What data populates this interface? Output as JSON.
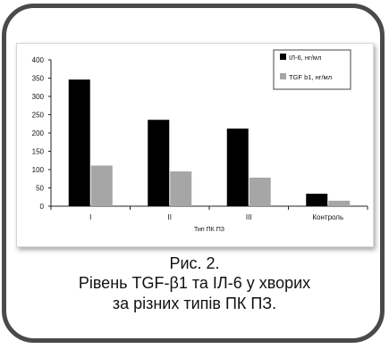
{
  "chart_data": {
    "type": "bar",
    "categories": [
      "I",
      "II",
      "III",
      "Контроль"
    ],
    "series": [
      {
        "name": "ІЛ-6, нг/мл",
        "values": [
          346,
          236,
          212,
          34
        ],
        "color": "#000000"
      },
      {
        "name": "TGF  b1, нг/мл",
        "values": [
          111,
          95,
          78,
          15
        ],
        "color": "#a6a6a6"
      }
    ],
    "title": "",
    "xlabel": "Тип ПК ПЗ",
    "ylabel": "",
    "ylim": [
      0,
      400
    ],
    "yticks": [
      "0",
      "50",
      "100",
      "150",
      "200",
      "250",
      "300",
      "350",
      "400"
    ],
    "grid": false,
    "legend_position": "top-right"
  },
  "caption": {
    "line1": "Рис. 2.",
    "line2": "Рівень TGF-β1 та ІЛ-6 у хворих",
    "line3": "за різних типів ПК ПЗ."
  }
}
